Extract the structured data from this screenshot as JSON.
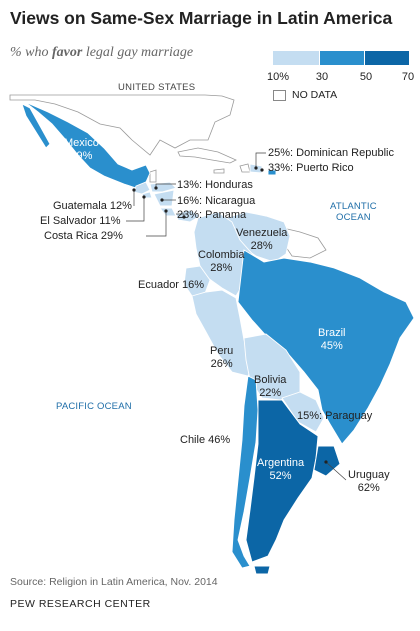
{
  "title": "Views on Same-Sex Marriage in Latin America",
  "subtitle": {
    "pre": "% who ",
    "bold": "favor",
    "post": " legal gay marriage"
  },
  "legend": {
    "ticks": [
      "10%",
      "30",
      "50",
      "70"
    ],
    "bins": [
      {
        "from": 10,
        "to": 30,
        "color": "#c4ddf1"
      },
      {
        "from": 30,
        "to": 50,
        "color": "#2a8fcd"
      },
      {
        "from": 50,
        "to": 70,
        "color": "#0c66a6"
      }
    ],
    "no_data_label": "NO DATA"
  },
  "labels": {
    "united_states": "UNITED STATES",
    "atlantic_ocean": "ATLANTIC\nOCEAN",
    "pacific_ocean": "PACIFIC OCEAN",
    "mexico": "Mexico\n49%",
    "dominican_republic": "25%: Dominican Republic",
    "puerto_rico": "33%: Puerto Rico",
    "honduras": "13%: Honduras",
    "nicaragua": "16%: Nicaragua",
    "panama": "23%: Panama",
    "guatemala": "Guatemala 12%",
    "el_salvador": "El Salvador 11%",
    "costa_rica": "Costa Rica 29%",
    "venezuela": "Venezuela\n28%",
    "colombia": "Colombia\n28%",
    "ecuador": "Ecuador 16%",
    "brazil": "Brazil\n45%",
    "peru": "Peru\n26%",
    "bolivia": "Bolivia\n22%",
    "paraguay": "15%: Paraguay",
    "chile": "Chile 46%",
    "argentina": "Argentina\n52%",
    "uruguay": "Uruguay\n62%"
  },
  "map_data": {
    "Mexico": 49,
    "Dominican Republic": 25,
    "Puerto Rico": 33,
    "Honduras": 13,
    "Nicaragua": 16,
    "Panama": 23,
    "Guatemala": 12,
    "El Salvador": 11,
    "Costa Rica": 29,
    "Venezuela": 28,
    "Colombia": 28,
    "Ecuador": 16,
    "Brazil": 45,
    "Peru": 26,
    "Bolivia": 22,
    "Paraguay": 15,
    "Chile": 46,
    "Argentina": 52,
    "Uruguay": 62
  },
  "colors": {
    "low": "#c4ddf1",
    "mid": "#2a8fcd",
    "high": "#0c66a6",
    "ocean_text": "#1f6ea8"
  },
  "source": "Source: Religion in Latin America, Nov. 2014",
  "organization": "PEW RESEARCH CENTER"
}
